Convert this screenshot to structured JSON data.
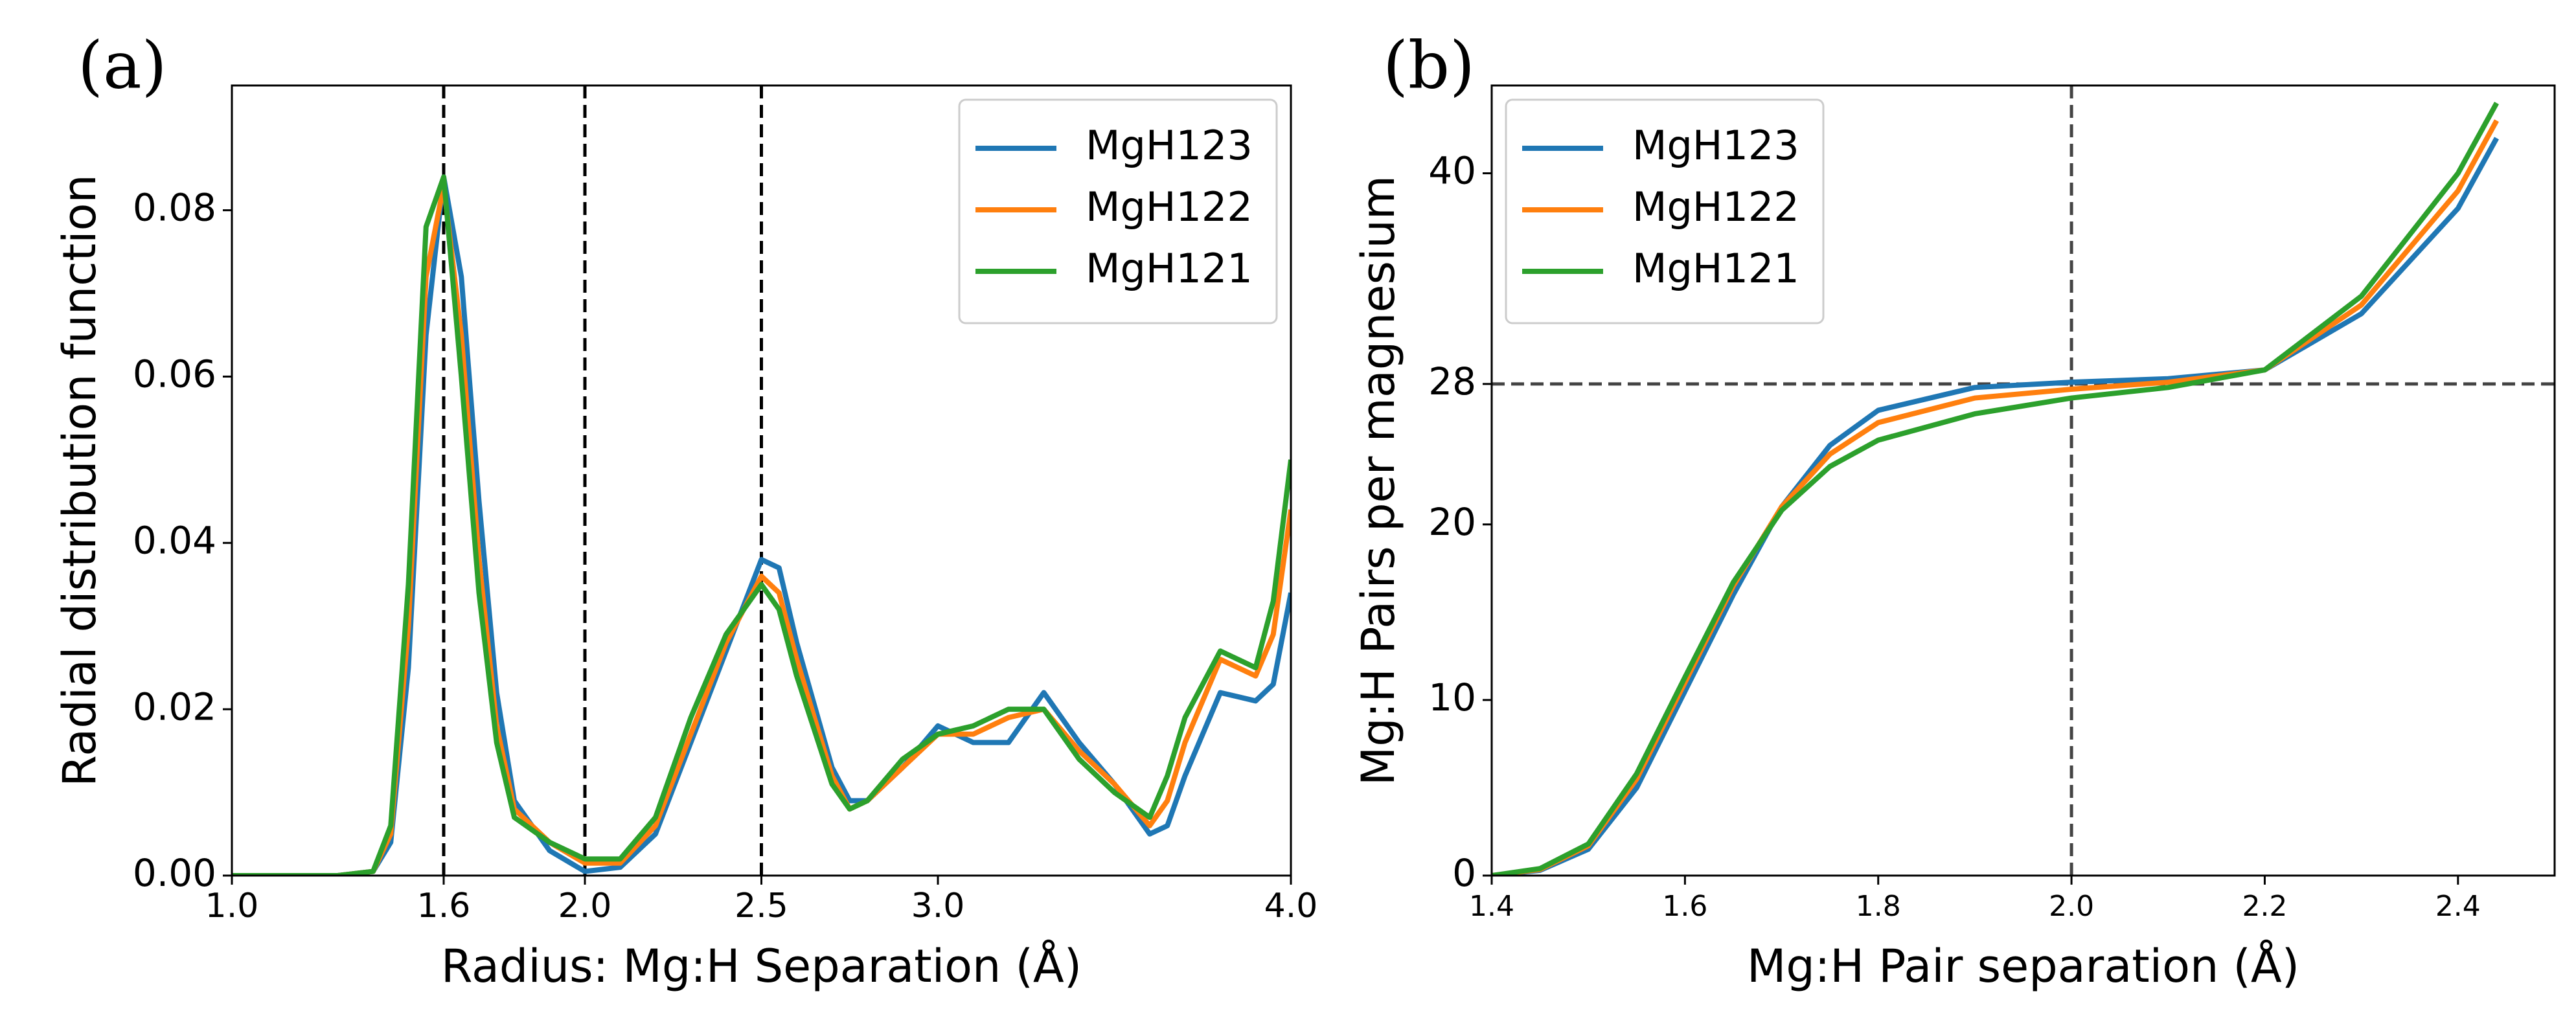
{
  "chart_data": [
    {
      "type": "line",
      "panel_label": "(a)",
      "x_label": "Radius: Mg:H Separation (Å)",
      "y_label": "Radial distribution function",
      "x": [
        1.0,
        1.3,
        1.4,
        1.45,
        1.5,
        1.55,
        1.6,
        1.65,
        1.7,
        1.75,
        1.8,
        1.9,
        2.0,
        2.1,
        2.2,
        2.3,
        2.4,
        2.5,
        2.55,
        2.6,
        2.7,
        2.75,
        2.8,
        2.9,
        3.0,
        3.1,
        3.2,
        3.3,
        3.4,
        3.5,
        3.6,
        3.65,
        3.7,
        3.8,
        3.9,
        3.95,
        4.0
      ],
      "series": [
        {
          "name": "MgH123",
          "color": "#1f77b4",
          "values": [
            0,
            0,
            0.0005,
            0.004,
            0.025,
            0.065,
            0.084,
            0.072,
            0.045,
            0.022,
            0.009,
            0.003,
            0.0005,
            0.001,
            0.005,
            0.016,
            0.027,
            0.038,
            0.037,
            0.028,
            0.013,
            0.009,
            0.009,
            0.013,
            0.018,
            0.016,
            0.016,
            0.022,
            0.016,
            0.011,
            0.005,
            0.006,
            0.012,
            0.022,
            0.021,
            0.023,
            0.034
          ]
        },
        {
          "name": "MgH122",
          "color": "#ff7f0e",
          "values": [
            0,
            0,
            0.0005,
            0.005,
            0.03,
            0.072,
            0.083,
            0.065,
            0.038,
            0.018,
            0.008,
            0.004,
            0.0015,
            0.0015,
            0.006,
            0.017,
            0.028,
            0.036,
            0.034,
            0.026,
            0.012,
            0.008,
            0.009,
            0.013,
            0.017,
            0.017,
            0.019,
            0.02,
            0.015,
            0.011,
            0.006,
            0.009,
            0.016,
            0.026,
            0.024,
            0.029,
            0.044
          ]
        },
        {
          "name": "MgH121",
          "color": "#2ca02c",
          "values": [
            0,
            0,
            0.0005,
            0.006,
            0.035,
            0.078,
            0.084,
            0.06,
            0.034,
            0.016,
            0.007,
            0.004,
            0.002,
            0.002,
            0.007,
            0.019,
            0.029,
            0.035,
            0.032,
            0.024,
            0.011,
            0.008,
            0.009,
            0.014,
            0.017,
            0.018,
            0.02,
            0.02,
            0.014,
            0.01,
            0.007,
            0.012,
            0.019,
            0.027,
            0.025,
            0.033,
            0.05
          ]
        }
      ],
      "xlim": [
        1.0,
        4.0
      ],
      "xticks": [
        {
          "value": 1.0,
          "label": "1.0"
        },
        1.6,
        {
          "value": 2.0,
          "label": "2.0"
        },
        2.5,
        {
          "value": 3.0,
          "label": "3.0"
        },
        {
          "value": 4.0,
          "label": "4.0"
        }
      ],
      "ylim": [
        0,
        0.095
      ],
      "yticks": [
        {
          "value": 0,
          "label": "0.00"
        },
        0.02,
        0.04,
        0.06,
        0.08
      ],
      "vlines": [
        1.6,
        2.0,
        2.5
      ],
      "hlines": [],
      "refline_color": "#000000",
      "legend": "upper right"
    },
    {
      "type": "line",
      "panel_label": "(b)",
      "x_label": "Mg:H Pair separation (Å)",
      "y_label": "Mg:H Pairs per magnesium",
      "x": [
        1.4,
        1.45,
        1.5,
        1.55,
        1.6,
        1.65,
        1.7,
        1.75,
        1.8,
        1.9,
        2.0,
        2.1,
        2.2,
        2.3,
        2.4,
        2.44
      ],
      "series": [
        {
          "name": "MgH123",
          "color": "#1f77b4",
          "values": [
            0,
            0.3,
            1.5,
            5,
            10.5,
            16,
            21,
            24.5,
            26.5,
            27.8,
            28.1,
            28.3,
            28.8,
            32,
            38,
            42
          ]
        },
        {
          "name": "MgH122",
          "color": "#ff7f0e",
          "values": [
            0,
            0.35,
            1.7,
            5.5,
            11,
            16.5,
            21,
            24,
            25.8,
            27.2,
            27.7,
            28.1,
            28.8,
            32.5,
            39,
            43
          ]
        },
        {
          "name": "MgH121",
          "color": "#2ca02c",
          "values": [
            0,
            0.4,
            1.8,
            5.8,
            11.3,
            16.7,
            20.8,
            23.3,
            24.8,
            26.3,
            27.2,
            27.8,
            28.8,
            33,
            40,
            44
          ]
        }
      ],
      "xlim": [
        1.4,
        2.5
      ],
      "xticks": [
        1.4,
        1.6,
        1.8,
        {
          "value": 2.0,
          "label": "2.0"
        },
        2.2,
        2.4
      ],
      "ylim": [
        0,
        45
      ],
      "yticks": [
        0,
        10,
        20,
        28,
        40
      ],
      "vlines": [
        2.0
      ],
      "hlines": [
        28
      ],
      "refline_color": "#444444",
      "legend": "upper left"
    }
  ]
}
